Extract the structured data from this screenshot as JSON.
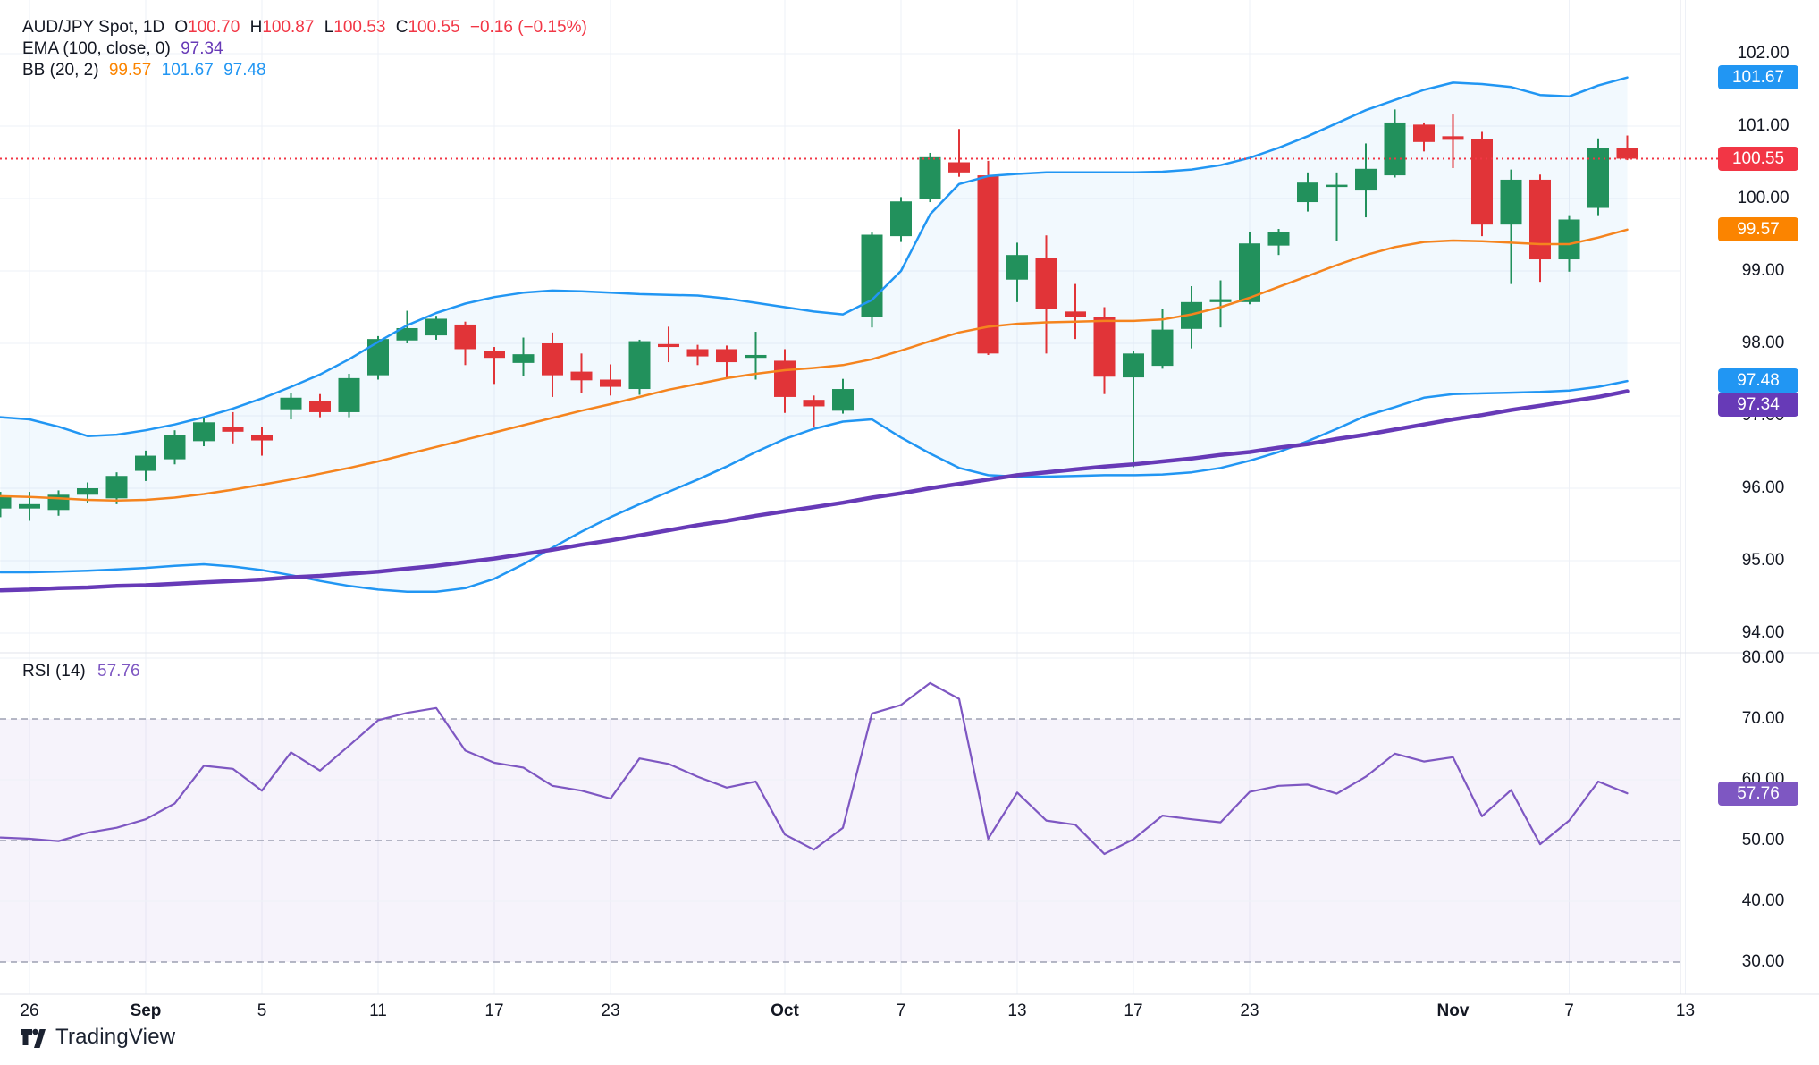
{
  "header": {
    "symbol": "AUD/JPY Spot, 1D",
    "o_label": "O",
    "h_label": "H",
    "l_label": "L",
    "c_label": "C",
    "o": "100.70",
    "h": "100.87",
    "l": "100.53",
    "c": "100.55",
    "change": "−0.16 (−0.15%)",
    "ema_label": "EMA (100, close, 0)",
    "ema_value": "97.34",
    "bb_label": "BB (20, 2)",
    "bb_basis": "99.57",
    "bb_upper": "101.67",
    "bb_lower": "97.48"
  },
  "rsi_pane": {
    "label": "RSI (14)",
    "value": "57.76"
  },
  "footer": {
    "brand": "TradingView"
  },
  "colors": {
    "up": "#22915c",
    "down": "#e13438",
    "bb_band": "#2196f3",
    "bb_basis": "#f5841e",
    "bb_fill_opacity": 0.06,
    "ema": "#673ab7",
    "rsi": "#7e57c2",
    "rsi_band_fill": "rgba(126,87,194,0.07)",
    "grid": "#eef1f7",
    "border": "#e0e3eb",
    "dashed": "#8b8fa3",
    "last_price": "#f23645",
    "axis_text": "#131722"
  },
  "chart_data": {
    "type": "candlestick",
    "title": "AUD/JPY Spot, 1D",
    "legend_position": "top-left",
    "grid": true,
    "price_axis_ticks": [
      102.0,
      101.0,
      100.0,
      99.0,
      98.0,
      97.0,
      96.0,
      95.0,
      94.0
    ],
    "price_axis_range": [
      93.75,
      102.5
    ],
    "rsi_axis_ticks": [
      80.0,
      70.0,
      60.0,
      50.0,
      40.0,
      30.0
    ],
    "rsi_levels_dashed": [
      70,
      50,
      30
    ],
    "rsi_levels_solid": [
      80,
      60,
      40
    ],
    "rsi_band": [
      30,
      70
    ],
    "last_price": 100.55,
    "last_rsi": 57.76,
    "x_labels": [
      {
        "t": "26",
        "i": 1,
        "b": 0
      },
      {
        "t": "Sep",
        "i": 5,
        "b": 1
      },
      {
        "t": "5",
        "i": 9,
        "b": 0
      },
      {
        "t": "11",
        "i": 13,
        "b": 0
      },
      {
        "t": "17",
        "i": 17,
        "b": 0
      },
      {
        "t": "23",
        "i": 21,
        "b": 0
      },
      {
        "t": "Oct",
        "i": 27,
        "b": 1
      },
      {
        "t": "7",
        "i": 31,
        "b": 0
      },
      {
        "t": "13",
        "i": 35,
        "b": 0
      },
      {
        "t": "17",
        "i": 39,
        "b": 0
      },
      {
        "t": "23",
        "i": 43,
        "b": 0
      },
      {
        "t": "Nov",
        "i": 50,
        "b": 1
      },
      {
        "t": "7",
        "i": 54,
        "b": 0
      },
      {
        "t": "13",
        "i": 58,
        "b": 0
      }
    ],
    "badges": [
      {
        "label": "101.67",
        "value": 101.67,
        "pane": "price",
        "color": "#2196f3",
        "shift": 0
      },
      {
        "label": "100.55",
        "value": 100.55,
        "pane": "price",
        "color": "#f23645",
        "shift": 0
      },
      {
        "label": "99.57",
        "value": 99.57,
        "pane": "price",
        "color": "#fb8400",
        "shift": 0
      },
      {
        "label": "97.48",
        "value": 97.48,
        "pane": "price",
        "color": "#2196f3",
        "shift": -1
      },
      {
        "label": "97.34",
        "value": 97.34,
        "pane": "price",
        "color": "#673ab7",
        "shift": 15
      },
      {
        "label": "57.76",
        "value": 57.76,
        "pane": "rsi",
        "color": "#7e57c2",
        "shift": 0
      }
    ],
    "candles": [
      [
        95.72,
        95.95,
        95.6,
        95.9
      ],
      [
        95.72,
        95.95,
        95.55,
        95.78
      ],
      [
        95.7,
        95.97,
        95.62,
        95.91
      ],
      [
        95.91,
        96.08,
        95.8,
        96.0
      ],
      [
        95.86,
        96.22,
        95.78,
        96.17
      ],
      [
        96.24,
        96.52,
        96.1,
        96.45
      ],
      [
        96.4,
        96.8,
        96.33,
        96.74
      ],
      [
        96.65,
        96.98,
        96.58,
        96.91
      ],
      [
        96.85,
        97.05,
        96.62,
        96.78
      ],
      [
        96.73,
        96.85,
        96.45,
        96.66
      ],
      [
        97.09,
        97.32,
        96.95,
        97.25
      ],
      [
        97.21,
        97.3,
        96.98,
        97.05
      ],
      [
        97.05,
        97.58,
        96.98,
        97.52
      ],
      [
        97.56,
        98.1,
        97.5,
        98.06
      ],
      [
        98.04,
        98.45,
        98.0,
        98.21
      ],
      [
        98.11,
        98.38,
        98.05,
        98.34
      ],
      [
        98.26,
        98.3,
        97.7,
        97.92
      ],
      [
        97.9,
        97.95,
        97.44,
        97.8
      ],
      [
        97.73,
        98.08,
        97.55,
        97.85
      ],
      [
        98.0,
        98.15,
        97.26,
        97.56
      ],
      [
        97.61,
        97.86,
        97.32,
        97.49
      ],
      [
        97.5,
        97.71,
        97.28,
        97.4
      ],
      [
        97.37,
        98.05,
        97.29,
        98.03
      ],
      [
        97.99,
        98.23,
        97.74,
        97.95
      ],
      [
        97.92,
        97.98,
        97.7,
        97.82
      ],
      [
        97.92,
        97.97,
        97.53,
        97.74
      ],
      [
        97.8,
        98.16,
        97.5,
        97.84
      ],
      [
        97.76,
        97.92,
        97.04,
        97.26
      ],
      [
        97.22,
        97.28,
        96.84,
        97.13
      ],
      [
        97.07,
        97.51,
        97.03,
        97.37
      ],
      [
        98.36,
        99.53,
        98.22,
        99.5
      ],
      [
        99.48,
        100.02,
        99.4,
        99.96
      ],
      [
        99.99,
        100.63,
        99.95,
        100.57
      ],
      [
        100.5,
        100.96,
        100.3,
        100.36
      ],
      [
        100.32,
        100.52,
        97.84,
        97.86
      ],
      [
        98.88,
        99.39,
        98.57,
        99.22
      ],
      [
        99.18,
        99.49,
        97.86,
        98.48
      ],
      [
        98.44,
        98.82,
        98.06,
        98.36
      ],
      [
        98.36,
        98.5,
        97.3,
        97.54
      ],
      [
        97.53,
        97.9,
        96.29,
        97.86
      ],
      [
        97.69,
        98.48,
        97.65,
        98.19
      ],
      [
        98.2,
        98.79,
        97.93,
        98.57
      ],
      [
        98.57,
        98.87,
        98.22,
        98.61
      ],
      [
        98.57,
        99.54,
        98.54,
        99.38
      ],
      [
        99.35,
        99.58,
        99.22,
        99.54
      ],
      [
        99.95,
        100.36,
        99.82,
        100.22
      ],
      [
        100.17,
        100.36,
        99.42,
        100.19
      ],
      [
        100.11,
        100.76,
        99.74,
        100.41
      ],
      [
        100.32,
        101.23,
        100.29,
        101.05
      ],
      [
        101.02,
        101.05,
        100.65,
        100.78
      ],
      [
        100.86,
        101.16,
        100.42,
        100.81
      ],
      [
        100.82,
        100.92,
        99.48,
        99.64
      ],
      [
        99.64,
        100.4,
        98.82,
        100.26
      ],
      [
        100.26,
        100.33,
        98.85,
        99.16
      ],
      [
        99.16,
        99.77,
        98.99,
        99.71
      ],
      [
        99.87,
        100.83,
        99.77,
        100.7
      ],
      [
        100.7,
        100.87,
        100.53,
        100.55
      ]
    ],
    "bb_upper": [
      96.98,
      96.95,
      96.85,
      96.72,
      96.74,
      96.8,
      96.88,
      96.98,
      97.1,
      97.24,
      97.4,
      97.57,
      97.78,
      98.02,
      98.25,
      98.42,
      98.55,
      98.64,
      98.7,
      98.73,
      98.72,
      98.7,
      98.68,
      98.67,
      98.66,
      98.62,
      98.56,
      98.5,
      98.44,
      98.4,
      98.6,
      99.0,
      99.78,
      100.2,
      100.31,
      100.34,
      100.36,
      100.36,
      100.36,
      100.36,
      100.37,
      100.4,
      100.46,
      100.56,
      100.7,
      100.86,
      101.04,
      101.22,
      101.36,
      101.5,
      101.6,
      101.58,
      101.54,
      101.43,
      101.41,
      101.56,
      101.67
    ],
    "bb_middle": [
      95.89,
      95.88,
      95.86,
      95.84,
      95.83,
      95.84,
      95.87,
      95.92,
      95.98,
      96.05,
      96.12,
      96.2,
      96.28,
      96.37,
      96.47,
      96.57,
      96.67,
      96.77,
      96.87,
      96.97,
      97.07,
      97.16,
      97.26,
      97.36,
      97.44,
      97.52,
      97.58,
      97.63,
      97.66,
      97.7,
      97.78,
      97.9,
      98.03,
      98.15,
      98.23,
      98.27,
      98.29,
      98.3,
      98.31,
      98.31,
      98.33,
      98.4,
      98.5,
      98.63,
      98.78,
      98.93,
      99.08,
      99.22,
      99.33,
      99.4,
      99.42,
      99.41,
      99.39,
      99.37,
      99.37,
      99.46,
      99.57
    ],
    "bb_lower": [
      94.84,
      94.84,
      94.85,
      94.86,
      94.88,
      94.9,
      94.93,
      94.95,
      94.92,
      94.87,
      94.8,
      94.72,
      94.65,
      94.6,
      94.57,
      94.57,
      94.62,
      94.75,
      94.95,
      95.18,
      95.4,
      95.6,
      95.78,
      95.95,
      96.12,
      96.3,
      96.5,
      96.68,
      96.82,
      96.92,
      96.95,
      96.7,
      96.48,
      96.28,
      96.18,
      96.16,
      96.16,
      96.17,
      96.18,
      96.18,
      96.19,
      96.22,
      96.28,
      96.38,
      96.5,
      96.65,
      96.82,
      97.0,
      97.12,
      97.25,
      97.3,
      97.31,
      97.32,
      97.33,
      97.35,
      97.4,
      97.48
    ],
    "ema100": [
      94.59,
      94.6,
      94.62,
      94.63,
      94.65,
      94.66,
      94.68,
      94.7,
      94.72,
      94.74,
      94.77,
      94.79,
      94.82,
      94.85,
      94.89,
      94.93,
      94.98,
      95.03,
      95.09,
      95.15,
      95.22,
      95.28,
      95.35,
      95.42,
      95.49,
      95.55,
      95.62,
      95.68,
      95.74,
      95.8,
      95.87,
      95.93,
      96.0,
      96.06,
      96.12,
      96.18,
      96.22,
      96.26,
      96.3,
      96.33,
      96.37,
      96.41,
      96.46,
      96.5,
      96.56,
      96.61,
      96.68,
      96.74,
      96.81,
      96.88,
      96.95,
      97.01,
      97.08,
      97.14,
      97.2,
      97.26,
      97.34
    ],
    "rsi14": [
      50.5,
      50.3,
      49.9,
      51.3,
      52.1,
      53.5,
      56.1,
      62.3,
      61.8,
      58.2,
      64.5,
      61.5,
      65.6,
      69.8,
      71.0,
      71.8,
      64.8,
      62.8,
      62.0,
      59.0,
      58.2,
      56.9,
      63.5,
      62.6,
      60.5,
      58.7,
      59.7,
      51.0,
      48.5,
      52.1,
      70.9,
      72.3,
      75.9,
      73.3,
      50.3,
      57.9,
      53.3,
      52.6,
      47.8,
      50.2,
      54.1,
      53.5,
      53.0,
      58.0,
      59.0,
      59.2,
      57.7,
      60.5,
      64.3,
      63.0,
      63.7,
      54.0,
      58.3,
      49.4,
      53.3,
      59.7,
      57.76
    ]
  }
}
